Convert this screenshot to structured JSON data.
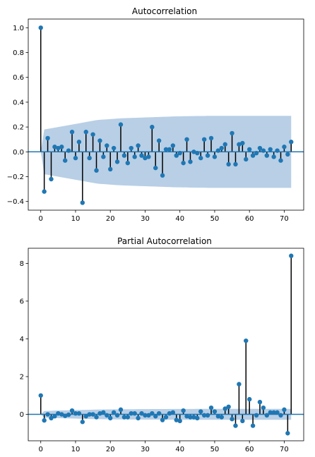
{
  "chart_data": [
    {
      "type": "stem",
      "title": "Autocorrelation",
      "xlabel": "",
      "ylabel": "",
      "xlim": [
        -3.6,
        75.6
      ],
      "ylim": [
        -0.47,
        1.07
      ],
      "xticks": [
        0,
        10,
        20,
        30,
        40,
        50,
        60,
        70
      ],
      "yticks": [
        -0.4,
        -0.2,
        0.0,
        0.2,
        0.4,
        0.6,
        0.8,
        1.0
      ],
      "ytick_labels": [
        "−0.4",
        "−0.2",
        "0.0",
        "0.2",
        "0.4",
        "0.6",
        "0.8",
        "1.0"
      ],
      "x": [
        0,
        1,
        2,
        3,
        4,
        5,
        6,
        7,
        8,
        9,
        10,
        11,
        12,
        13,
        14,
        15,
        16,
        17,
        18,
        19,
        20,
        21,
        22,
        23,
        24,
        25,
        26,
        27,
        28,
        29,
        30,
        31,
        32,
        33,
        34,
        35,
        36,
        37,
        38,
        39,
        40,
        41,
        42,
        43,
        44,
        45,
        46,
        47,
        48,
        49,
        50,
        51,
        52,
        53,
        54,
        55,
        56,
        57,
        58,
        59,
        60,
        61,
        62,
        63,
        64,
        65,
        66,
        67,
        68,
        69,
        70,
        71,
        72
      ],
      "values": [
        1.0,
        -0.32,
        0.11,
        -0.22,
        0.04,
        0.03,
        0.04,
        -0.07,
        0.01,
        0.16,
        -0.05,
        0.08,
        -0.41,
        0.16,
        -0.05,
        0.14,
        -0.15,
        0.09,
        -0.04,
        0.05,
        -0.14,
        0.03,
        -0.08,
        0.22,
        -0.03,
        -0.09,
        0.03,
        -0.04,
        0.05,
        -0.03,
        -0.05,
        -0.04,
        0.2,
        -0.13,
        0.09,
        -0.19,
        0.02,
        0.02,
        0.05,
        -0.03,
        -0.01,
        -0.09,
        0.1,
        -0.08,
        0.0,
        -0.01,
        -0.05,
        0.1,
        -0.03,
        0.11,
        -0.04,
        0.01,
        0.03,
        0.06,
        -0.1,
        0.15,
        -0.1,
        0.06,
        0.07,
        -0.06,
        0.02,
        -0.03,
        -0.01,
        0.03,
        0.01,
        -0.03,
        0.02,
        -0.04,
        0.01,
        -0.07,
        0.04,
        -0.02,
        0.08
      ],
      "confint_upper": [
        0.0,
        0.18,
        0.185,
        0.19,
        0.195,
        0.2,
        0.205,
        0.21,
        0.215,
        0.22,
        0.225,
        0.23,
        0.235,
        0.24,
        0.245,
        0.25,
        0.255,
        0.258,
        0.26,
        0.262,
        0.264,
        0.266,
        0.268,
        0.27,
        0.271,
        0.272,
        0.273,
        0.274,
        0.275,
        0.276,
        0.277,
        0.278,
        0.279,
        0.28,
        0.281,
        0.282,
        0.283,
        0.284,
        0.285,
        0.286,
        0.286,
        0.287,
        0.287,
        0.288,
        0.288,
        0.289,
        0.289,
        0.289,
        0.29,
        0.29,
        0.29,
        0.29,
        0.29,
        0.29,
        0.29,
        0.29,
        0.29,
        0.29,
        0.29,
        0.29,
        0.29,
        0.29,
        0.29,
        0.29,
        0.29,
        0.29,
        0.29,
        0.29,
        0.29,
        0.29,
        0.29,
        0.29,
        0.29
      ],
      "grid": false,
      "legend": "none"
    },
    {
      "type": "stem",
      "title": "Partial Autocorrelation",
      "xlabel": "",
      "ylabel": "",
      "xlim": [
        -3.6,
        75.6
      ],
      "ylim": [
        -1.4,
        8.8
      ],
      "xticks": [
        0,
        10,
        20,
        30,
        40,
        50,
        60,
        70
      ],
      "yticks": [
        0,
        2,
        4,
        6,
        8
      ],
      "ytick_labels": [
        "0",
        "2",
        "4",
        "6",
        "8"
      ],
      "x": [
        0,
        1,
        2,
        3,
        4,
        5,
        6,
        7,
        8,
        9,
        10,
        11,
        12,
        13,
        14,
        15,
        16,
        17,
        18,
        19,
        20,
        21,
        22,
        23,
        24,
        25,
        26,
        27,
        28,
        29,
        30,
        31,
        32,
        33,
        34,
        35,
        36,
        37,
        38,
        39,
        40,
        41,
        42,
        43,
        44,
        45,
        46,
        47,
        48,
        49,
        50,
        51,
        52,
        53,
        54,
        55,
        56,
        57,
        58,
        59,
        60,
        61,
        62,
        63,
        64,
        65,
        66,
        67,
        68,
        69,
        70,
        71,
        72
      ],
      "values": [
        1.0,
        -0.32,
        0.0,
        -0.2,
        -0.1,
        0.05,
        0.0,
        -0.08,
        -0.02,
        0.2,
        0.05,
        0.05,
        -0.4,
        -0.1,
        0.0,
        0.0,
        -0.15,
        0.05,
        0.1,
        -0.05,
        -0.2,
        0.1,
        -0.05,
        0.25,
        -0.15,
        -0.15,
        0.05,
        0.05,
        -0.2,
        0.05,
        -0.05,
        -0.05,
        0.05,
        -0.1,
        0.05,
        -0.3,
        -0.15,
        0.05,
        0.1,
        -0.3,
        -0.35,
        0.2,
        -0.1,
        -0.15,
        -0.15,
        -0.2,
        0.15,
        -0.05,
        -0.05,
        0.35,
        0.15,
        -0.1,
        -0.15,
        0.3,
        0.4,
        -0.25,
        -0.6,
        1.6,
        -0.35,
        3.9,
        0.8,
        -0.6,
        -0.05,
        0.65,
        0.35,
        -0.05,
        0.1,
        0.1,
        0.1,
        -0.05,
        0.25,
        -1.0,
        8.4
      ],
      "confint_upper": [
        0.0,
        0.18,
        0.185,
        0.19,
        0.195,
        0.2,
        0.205,
        0.21,
        0.215,
        0.22,
        0.225,
        0.23,
        0.235,
        0.24,
        0.245,
        0.25,
        0.255,
        0.258,
        0.26,
        0.262,
        0.264,
        0.266,
        0.268,
        0.27,
        0.271,
        0.272,
        0.273,
        0.274,
        0.275,
        0.276,
        0.277,
        0.278,
        0.279,
        0.28,
        0.281,
        0.282,
        0.283,
        0.284,
        0.285,
        0.286,
        0.286,
        0.287,
        0.287,
        0.288,
        0.288,
        0.289,
        0.289,
        0.289,
        0.29,
        0.29,
        0.29,
        0.29,
        0.29,
        0.29,
        0.29,
        0.29,
        0.29,
        0.29,
        0.29,
        0.29,
        0.29,
        0.29,
        0.29,
        0.29,
        0.29,
        0.29,
        0.29,
        0.29,
        0.29,
        0.29,
        0.29,
        0.29,
        0.29
      ],
      "grid": false,
      "legend": "none"
    }
  ],
  "colors": {
    "marker": "#1f77b4",
    "stem": "#000000",
    "confint_band": "#b8cfe6",
    "zero_line": "#1f77b4"
  }
}
